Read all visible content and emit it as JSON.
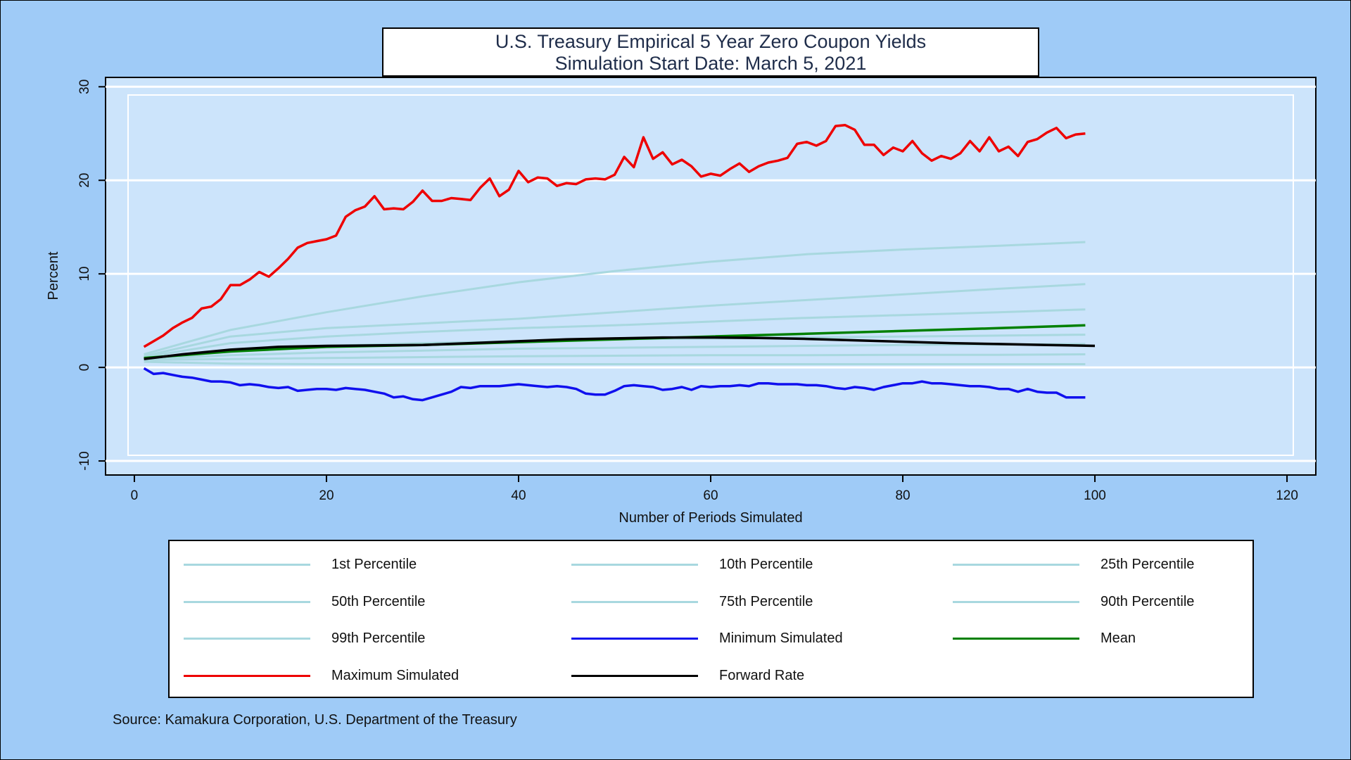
{
  "chart_data": {
    "type": "line",
    "title_lines": [
      "U.S. Treasury Empirical 5 Year Zero Coupon Yields",
      "Simulation Start Date: March 5, 2021"
    ],
    "xlabel": "Number of Periods Simulated",
    "ylabel": "Percent",
    "xlim": [
      -3,
      123
    ],
    "ylim": [
      -11.5,
      31
    ],
    "xticks": [
      0,
      20,
      40,
      60,
      80,
      100,
      120
    ],
    "yticks": [
      -10,
      0,
      10,
      20,
      30
    ],
    "grid": "horizontal",
    "legend_placement": "below",
    "source": "Source: Kamakura Corporation, U.S. Department of the Treasury",
    "series": [
      {
        "name": "1st Percentile",
        "color": "#a8d8df",
        "x": [
          1,
          10,
          20,
          30,
          40,
          50,
          60,
          70,
          80,
          90,
          99
        ],
        "y": [
          0.6,
          0.4,
          0.35,
          0.35,
          0.35,
          0.35,
          0.35,
          0.35,
          0.35,
          0.35,
          0.35
        ]
      },
      {
        "name": "10th Percentile",
        "color": "#a8d8df",
        "x": [
          1,
          10,
          20,
          30,
          40,
          50,
          60,
          70,
          80,
          90,
          99
        ],
        "y": [
          0.8,
          0.9,
          1.0,
          1.1,
          1.2,
          1.25,
          1.3,
          1.3,
          1.35,
          1.35,
          1.4
        ]
      },
      {
        "name": "25th Percentile",
        "color": "#a8d8df",
        "x": [
          1,
          10,
          20,
          30,
          40,
          50,
          60,
          70,
          80,
          90,
          99
        ],
        "y": [
          0.9,
          1.3,
          1.6,
          1.8,
          2.0,
          2.1,
          2.2,
          2.3,
          2.4,
          2.45,
          2.5
        ]
      },
      {
        "name": "50th Percentile",
        "color": "#a8d8df",
        "x": [
          1,
          10,
          20,
          30,
          40,
          50,
          60,
          70,
          80,
          90,
          99
        ],
        "y": [
          1.0,
          1.8,
          2.3,
          2.6,
          2.8,
          3.0,
          3.1,
          3.2,
          3.3,
          3.4,
          3.5
        ]
      },
      {
        "name": "75th Percentile",
        "color": "#a8d8df",
        "x": [
          1,
          10,
          20,
          30,
          40,
          50,
          60,
          70,
          80,
          90,
          99
        ],
        "y": [
          1.1,
          2.6,
          3.3,
          3.8,
          4.2,
          4.5,
          4.9,
          5.3,
          5.6,
          5.9,
          6.2
        ]
      },
      {
        "name": "90th Percentile",
        "color": "#a8d8df",
        "x": [
          1,
          10,
          20,
          30,
          40,
          50,
          60,
          70,
          80,
          90,
          99
        ],
        "y": [
          1.2,
          3.3,
          4.2,
          4.7,
          5.2,
          5.9,
          6.6,
          7.2,
          7.8,
          8.4,
          8.9
        ]
      },
      {
        "name": "99th Percentile",
        "color": "#a8d8df",
        "x": [
          1,
          10,
          20,
          30,
          40,
          50,
          60,
          70,
          80,
          90,
          99
        ],
        "y": [
          1.4,
          4.0,
          5.9,
          7.6,
          9.1,
          10.3,
          11.3,
          12.1,
          12.6,
          13.0,
          13.4
        ]
      },
      {
        "name": "Minimum Simulated",
        "color": "#1010ee",
        "x": [
          1,
          2,
          3,
          4,
          5,
          6,
          7,
          8,
          9,
          10,
          11,
          12,
          13,
          14,
          15,
          16,
          17,
          18,
          19,
          20,
          21,
          22,
          23,
          24,
          25,
          26,
          27,
          28,
          29,
          30,
          31,
          32,
          33,
          34,
          35,
          36,
          37,
          38,
          39,
          40,
          41,
          42,
          43,
          44,
          45,
          46,
          47,
          48,
          49,
          50,
          51,
          52,
          53,
          54,
          55,
          56,
          57,
          58,
          59,
          60,
          61,
          62,
          63,
          64,
          65,
          66,
          67,
          68,
          69,
          70,
          71,
          72,
          73,
          74,
          75,
          76,
          77,
          78,
          79,
          80,
          81,
          82,
          83,
          84,
          85,
          86,
          87,
          88,
          89,
          90,
          91,
          92,
          93,
          94,
          95,
          96,
          97,
          98,
          99
        ],
        "y": [
          -0.1,
          -0.7,
          -0.6,
          -0.8,
          -1.0,
          -1.1,
          -1.3,
          -1.5,
          -1.5,
          -1.6,
          -1.9,
          -1.8,
          -1.9,
          -2.1,
          -2.2,
          -2.1,
          -2.5,
          -2.4,
          -2.3,
          -2.3,
          -2.4,
          -2.2,
          -2.3,
          -2.4,
          -2.6,
          -2.8,
          -3.2,
          -3.1,
          -3.4,
          -3.5,
          -3.2,
          -2.9,
          -2.6,
          -2.1,
          -2.2,
          -2.0,
          -2.0,
          -2.0,
          -1.9,
          -1.8,
          -1.9,
          -2.0,
          -2.1,
          -2.0,
          -2.1,
          -2.3,
          -2.8,
          -2.9,
          -2.9,
          -2.5,
          -2.0,
          -1.9,
          -2.0,
          -2.1,
          -2.4,
          -2.3,
          -2.1,
          -2.4,
          -2.0,
          -2.1,
          -2.0,
          -2.0,
          -1.9,
          -2.0,
          -1.7,
          -1.7,
          -1.8,
          -1.8,
          -1.8,
          -1.9,
          -1.9,
          -2.0,
          -2.2,
          -2.3,
          -2.1,
          -2.2,
          -2.4,
          -2.1,
          -1.9,
          -1.7,
          -1.7,
          -1.5,
          -1.7,
          -1.7,
          -1.8,
          -1.9,
          -2.0,
          -2.0,
          -2.1,
          -2.3,
          -2.3,
          -2.6,
          -2.3,
          -2.6,
          -2.7,
          -2.7,
          -3.2,
          -3.2,
          -3.2
        ]
      },
      {
        "name": "Mean",
        "color": "#008000",
        "x": [
          1,
          10,
          20,
          30,
          40,
          50,
          60,
          70,
          80,
          90,
          99
        ],
        "y": [
          1.0,
          1.7,
          2.2,
          2.4,
          2.7,
          3.0,
          3.3,
          3.6,
          3.9,
          4.2,
          4.5
        ]
      },
      {
        "name": "Maximum Simulated",
        "color": "#ee0000",
        "x": [
          1,
          2,
          3,
          4,
          5,
          6,
          7,
          8,
          9,
          10,
          11,
          12,
          13,
          14,
          15,
          16,
          17,
          18,
          19,
          20,
          21,
          22,
          23,
          24,
          25,
          26,
          27,
          28,
          29,
          30,
          31,
          32,
          33,
          34,
          35,
          36,
          37,
          38,
          39,
          40,
          41,
          42,
          43,
          44,
          45,
          46,
          47,
          48,
          49,
          50,
          51,
          52,
          53,
          54,
          55,
          56,
          57,
          58,
          59,
          60,
          61,
          62,
          63,
          64,
          65,
          66,
          67,
          68,
          69,
          70,
          71,
          72,
          73,
          74,
          75,
          76,
          77,
          78,
          79,
          80,
          81,
          82,
          83,
          84,
          85,
          86,
          87,
          88,
          89,
          90,
          91,
          92,
          93,
          94,
          95,
          96,
          97,
          98,
          99
        ],
        "y": [
          2.2,
          2.8,
          3.4,
          4.2,
          4.8,
          5.3,
          6.3,
          6.5,
          7.3,
          8.8,
          8.8,
          9.4,
          10.2,
          9.7,
          10.6,
          11.6,
          12.8,
          13.3,
          13.5,
          13.7,
          14.1,
          16.1,
          16.8,
          17.2,
          18.3,
          16.9,
          17.0,
          16.9,
          17.7,
          18.9,
          17.8,
          17.8,
          18.1,
          18.0,
          17.9,
          19.2,
          20.2,
          18.3,
          19.0,
          21.0,
          19.8,
          20.3,
          20.2,
          19.4,
          19.7,
          19.6,
          20.1,
          20.2,
          20.1,
          20.6,
          22.5,
          21.4,
          24.6,
          22.3,
          23.0,
          21.7,
          22.2,
          21.5,
          20.4,
          20.7,
          20.5,
          21.2,
          21.8,
          20.9,
          21.5,
          21.9,
          22.1,
          22.4,
          23.9,
          24.1,
          23.7,
          24.2,
          25.8,
          25.9,
          25.4,
          23.8,
          23.8,
          22.7,
          23.5,
          23.1,
          24.2,
          22.9,
          22.1,
          22.6,
          22.3,
          22.9,
          24.2,
          23.1,
          24.6,
          23.1,
          23.6,
          22.6,
          24.1,
          24.4,
          25.1,
          25.6,
          24.5,
          24.9,
          25.0
        ]
      },
      {
        "name": "Forward Rate",
        "color": "#000000",
        "x": [
          1,
          5,
          10,
          15,
          20,
          25,
          30,
          35,
          40,
          45,
          50,
          55,
          60,
          65,
          70,
          75,
          80,
          85,
          90,
          95,
          100
        ],
        "y": [
          0.9,
          1.4,
          1.9,
          2.2,
          2.3,
          2.35,
          2.4,
          2.6,
          2.8,
          3.0,
          3.1,
          3.2,
          3.2,
          3.15,
          3.05,
          2.9,
          2.75,
          2.6,
          2.5,
          2.4,
          2.3
        ]
      }
    ]
  }
}
